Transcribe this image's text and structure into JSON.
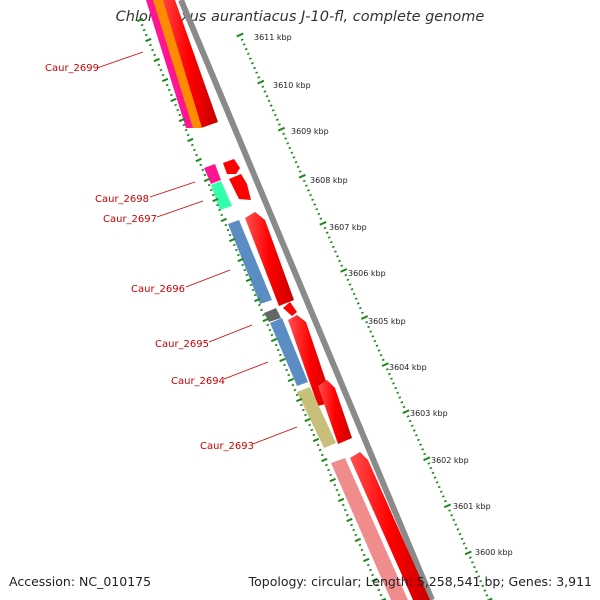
{
  "title": "Chloroflexus aurantiacus J-10-fl, complete genome",
  "footer": {
    "accession": "Accession: NC_010175",
    "summary": "Topology: circular; Length: 5,258,541 bp; Genes: 3,911"
  },
  "colors": {
    "backbone": "#8a8a8a",
    "cds": "#ff0000",
    "ticks": "#1a8a1a",
    "labels": "#cc0000"
  },
  "scale_ticks": [
    {
      "label": "3611 kbp"
    },
    {
      "label": "3610 kbp"
    },
    {
      "label": "3609 kbp"
    },
    {
      "label": "3608 kbp"
    },
    {
      "label": "3607 kbp"
    },
    {
      "label": "3606 kbp"
    },
    {
      "label": "3605 kbp"
    },
    {
      "label": "3604 kbp"
    },
    {
      "label": "3603 kbp"
    },
    {
      "label": "3602 kbp"
    },
    {
      "label": "3601 kbp"
    },
    {
      "label": "3600 kbp"
    }
  ],
  "gene_labels": [
    {
      "id": "Caur_2699",
      "label": "Caur_2699"
    },
    {
      "id": "Caur_2698",
      "label": "Caur_2698"
    },
    {
      "id": "Caur_2697",
      "label": "Caur_2697"
    },
    {
      "id": "Caur_2696",
      "label": "Caur_2696"
    },
    {
      "id": "Caur_2695",
      "label": "Caur_2695"
    },
    {
      "id": "Caur_2694",
      "label": "Caur_2694"
    },
    {
      "id": "Caur_2693",
      "label": "Caur_2693"
    }
  ],
  "cog_colors": {
    "Caur_2699": [
      "#ff1493",
      "#ff8c00"
    ],
    "Caur_2698": [
      "#ff1493"
    ],
    "Caur_2697": [
      "#33ffaa"
    ],
    "Caur_2696": [
      "#5b8dc4"
    ],
    "Caur_2695": [
      "#666666"
    ],
    "Caur_2694": [
      "#5b8dc4"
    ],
    "Caur_2693": [
      "#c8c07a"
    ],
    "Caur_2692": [
      "#f08c8c"
    ]
  }
}
